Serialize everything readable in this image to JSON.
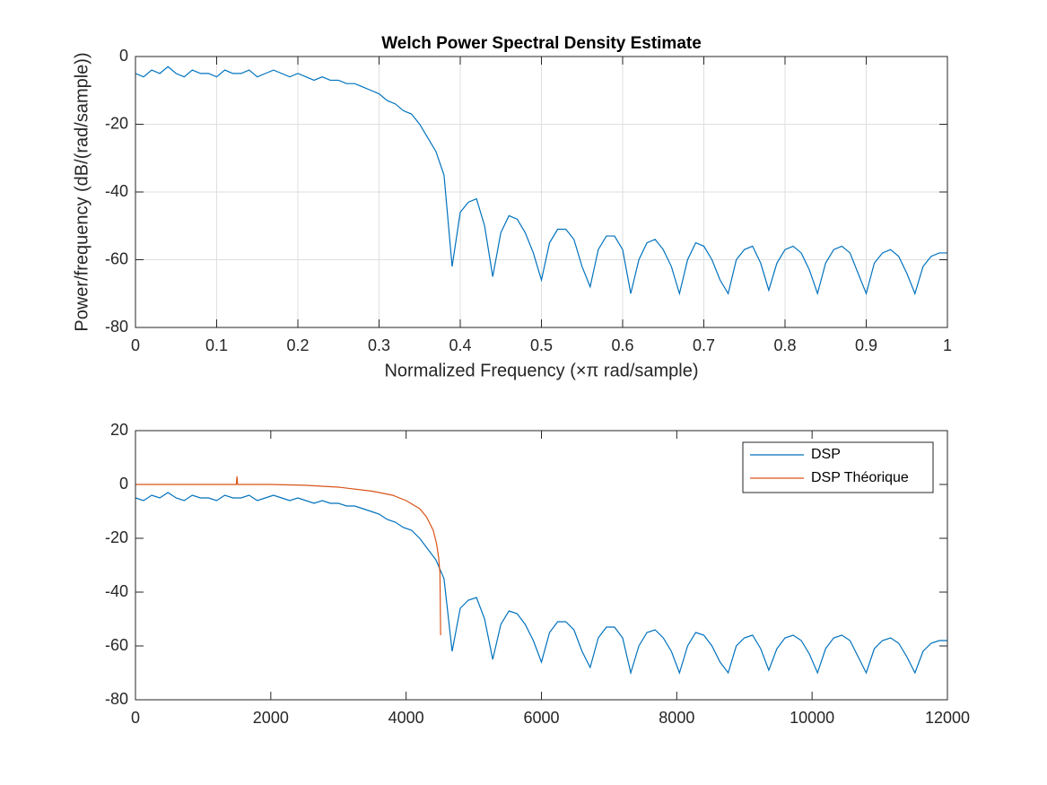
{
  "chart_data": [
    {
      "type": "line",
      "title": "Welch Power Spectral Density Estimate",
      "xlabel": "Normalized Frequency  (×π rad/sample)",
      "ylabel": "Power/frequency (dB/(rad/sample))",
      "xlim": [
        0,
        1
      ],
      "ylim": [
        -80,
        0
      ],
      "xticks": [
        0,
        0.1,
        0.2,
        0.3,
        0.4,
        0.5,
        0.6,
        0.7,
        0.8,
        0.9,
        1
      ],
      "yticks": [
        -80,
        -60,
        -40,
        -20,
        0
      ],
      "grid": true,
      "series": [
        {
          "color": "#0072BD",
          "x": [
            0,
            0.01,
            0.02,
            0.03,
            0.04,
            0.05,
            0.06,
            0.07,
            0.08,
            0.09,
            0.1,
            0.11,
            0.12,
            0.13,
            0.14,
            0.15,
            0.16,
            0.17,
            0.18,
            0.19,
            0.2,
            0.21,
            0.22,
            0.23,
            0.24,
            0.25,
            0.26,
            0.27,
            0.28,
            0.29,
            0.3,
            0.31,
            0.32,
            0.33,
            0.34,
            0.35,
            0.36,
            0.37,
            0.38,
            0.39,
            0.4,
            0.41,
            0.42,
            0.43,
            0.44,
            0.45,
            0.46,
            0.47,
            0.48,
            0.49,
            0.5,
            0.51,
            0.52,
            0.53,
            0.54,
            0.55,
            0.56,
            0.57,
            0.58,
            0.59,
            0.6,
            0.61,
            0.62,
            0.63,
            0.64,
            0.65,
            0.66,
            0.67,
            0.68,
            0.69,
            0.7,
            0.71,
            0.72,
            0.73,
            0.74,
            0.75,
            0.76,
            0.77,
            0.78,
            0.79,
            0.8,
            0.81,
            0.82,
            0.83,
            0.84,
            0.85,
            0.86,
            0.87,
            0.88,
            0.89,
            0.9,
            0.91,
            0.92,
            0.93,
            0.94,
            0.95,
            0.96,
            0.97,
            0.98,
            0.99,
            1
          ],
          "values": [
            -5,
            -6,
            -4,
            -5,
            -3,
            -5,
            -6,
            -4,
            -5,
            -5,
            -6,
            -4,
            -5,
            -5,
            -4,
            -6,
            -5,
            -4,
            -5,
            -6,
            -5,
            -6,
            -7,
            -6,
            -7,
            -7,
            -8,
            -8,
            -9,
            -10,
            -11,
            -13,
            -14,
            -16,
            -17,
            -20,
            -24,
            -28,
            -35,
            -62,
            -46,
            -43,
            -42,
            -50,
            -65,
            -52,
            -47,
            -48,
            -52,
            -58,
            -66,
            -55,
            -51,
            -51,
            -54,
            -62,
            -68,
            -57,
            -53,
            -53,
            -57,
            -70,
            -60,
            -55,
            -54,
            -57,
            -62,
            -70,
            -60,
            -55,
            -56,
            -60,
            -66,
            -70,
            -60,
            -57,
            -56,
            -61,
            -69,
            -61,
            -57,
            -56,
            -58,
            -63,
            -70,
            -61,
            -57,
            -56,
            -58,
            -64,
            -70,
            -61,
            -58,
            -57,
            -59,
            -64,
            -70,
            -62,
            -59,
            -58,
            -58
          ]
        }
      ]
    },
    {
      "type": "line",
      "xlim": [
        0,
        12000
      ],
      "ylim": [
        -80,
        20
      ],
      "xticks": [
        0,
        2000,
        4000,
        6000,
        8000,
        10000,
        12000
      ],
      "yticks": [
        -80,
        -60,
        -40,
        -20,
        0,
        20
      ],
      "grid": false,
      "legend": "northeast",
      "series": [
        {
          "name": "DSP",
          "color": "#0072BD",
          "x": [
            0,
            120,
            240,
            360,
            480,
            600,
            720,
            840,
            960,
            1080,
            1200,
            1320,
            1440,
            1560,
            1680,
            1800,
            1920,
            2040,
            2160,
            2280,
            2400,
            2520,
            2640,
            2760,
            2880,
            3000,
            3120,
            3240,
            3360,
            3480,
            3600,
            3720,
            3840,
            3960,
            4080,
            4200,
            4320,
            4440,
            4560,
            4680,
            4800,
            4920,
            5040,
            5160,
            5280,
            5400,
            5520,
            5640,
            5760,
            5880,
            6000,
            6120,
            6240,
            6360,
            6480,
            6600,
            6720,
            6840,
            6960,
            7080,
            7200,
            7320,
            7440,
            7560,
            7680,
            7800,
            7920,
            8040,
            8160,
            8280,
            8400,
            8520,
            8640,
            8760,
            8880,
            9000,
            9120,
            9240,
            9360,
            9480,
            9600,
            9720,
            9840,
            9960,
            10080,
            10200,
            10320,
            10440,
            10560,
            10680,
            10800,
            10920,
            11040,
            11160,
            11280,
            11400,
            11520,
            11640,
            11760,
            11880,
            12000
          ],
          "values": [
            -5,
            -6,
            -4,
            -5,
            -3,
            -5,
            -6,
            -4,
            -5,
            -5,
            -6,
            -4,
            -5,
            -5,
            -4,
            -6,
            -5,
            -4,
            -5,
            -6,
            -5,
            -6,
            -7,
            -6,
            -7,
            -7,
            -8,
            -8,
            -9,
            -10,
            -11,
            -13,
            -14,
            -16,
            -17,
            -20,
            -24,
            -28,
            -35,
            -62,
            -46,
            -43,
            -42,
            -50,
            -65,
            -52,
            -47,
            -48,
            -52,
            -58,
            -66,
            -55,
            -51,
            -51,
            -54,
            -62,
            -68,
            -57,
            -53,
            -53,
            -57,
            -70,
            -60,
            -55,
            -54,
            -57,
            -62,
            -70,
            -60,
            -55,
            -56,
            -60,
            -66,
            -70,
            -60,
            -57,
            -56,
            -61,
            -69,
            -61,
            -57,
            -56,
            -58,
            -63,
            -70,
            -61,
            -57,
            -56,
            -58,
            -64,
            -70,
            -61,
            -58,
            -57,
            -59,
            -64,
            -70,
            -62,
            -59,
            -58,
            -58
          ]
        },
        {
          "name": "DSP Théorique",
          "color": "#D95319",
          "x": [
            0,
            500,
            1000,
            1490,
            1500,
            1510,
            2000,
            2500,
            3000,
            3500,
            3800,
            4000,
            4200,
            4300,
            4400,
            4450,
            4480,
            4500,
            4510
          ],
          "values": [
            0,
            0,
            0,
            0,
            3,
            0,
            0,
            -0.3,
            -1,
            -2.5,
            -4,
            -6,
            -9,
            -12,
            -17,
            -22,
            -27,
            -33,
            -56
          ]
        }
      ]
    }
  ]
}
